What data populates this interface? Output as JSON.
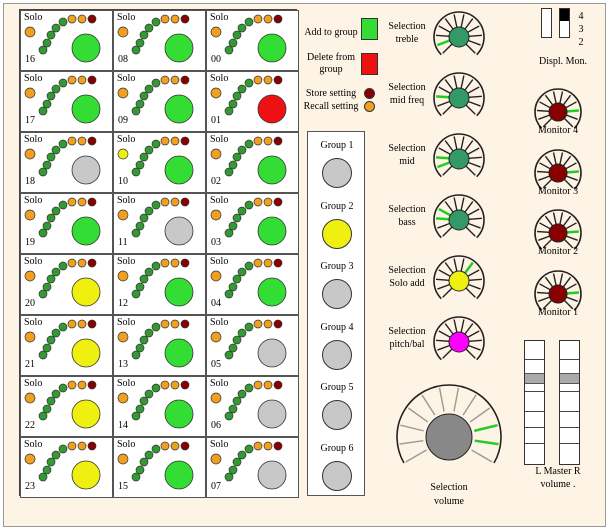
{
  "cells": [
    {
      "num": "16",
      "big": "#33dd33"
    },
    {
      "num": "08",
      "big": "#33dd33"
    },
    {
      "num": "00",
      "big": "#33dd33"
    },
    {
      "num": "17",
      "big": "#33dd33"
    },
    {
      "num": "09",
      "big": "#33dd33"
    },
    {
      "num": "01",
      "big": "#ee1111"
    },
    {
      "num": "18",
      "big": "#c8c8c8"
    },
    {
      "num": "10",
      "big": "#33dd33",
      "smallYellow": true
    },
    {
      "num": "02",
      "big": "#33dd33"
    },
    {
      "num": "19",
      "big": "#33dd33"
    },
    {
      "num": "11",
      "big": "#c8c8c8"
    },
    {
      "num": "03",
      "big": "#33dd33"
    },
    {
      "num": "20",
      "big": "#f0f010"
    },
    {
      "num": "12",
      "big": "#33dd33"
    },
    {
      "num": "04",
      "big": "#33dd33"
    },
    {
      "num": "21",
      "big": "#f0f010"
    },
    {
      "num": "13",
      "big": "#33dd33"
    },
    {
      "num": "05",
      "big": "#c8c8c8"
    },
    {
      "num": "22",
      "big": "#f0f010"
    },
    {
      "num": "14",
      "big": "#33dd33"
    },
    {
      "num": "06",
      "big": "#c8c8c8"
    },
    {
      "num": "23",
      "big": "#f0f010"
    },
    {
      "num": "15",
      "big": "#33dd33"
    },
    {
      "num": "07",
      "big": "#c8c8c8"
    }
  ],
  "solo_label": "Solo",
  "groups": [
    {
      "label": "Group 1",
      "color": "#c8c8c8"
    },
    {
      "label": "Group 2",
      "color": "#f0f010"
    },
    {
      "label": "Group 3",
      "color": "#c8c8c8"
    },
    {
      "label": "Group 4",
      "color": "#c8c8c8"
    },
    {
      "label": "Group 5",
      "color": "#c8c8c8"
    },
    {
      "label": "Group 6",
      "color": "#c8c8c8"
    }
  ],
  "legend": {
    "add": "Add to group",
    "add_color": "#33dd33",
    "del1": "Delete from",
    "del2": "group",
    "del_color": "#ee1111",
    "store": "Store setting",
    "store_color": "#880000",
    "recall": "Recall setting",
    "recall_color": "#f0a020"
  },
  "knobs": [
    {
      "l1": "Selection",
      "l2": "treble",
      "color": "#339966"
    },
    {
      "l1": "Selection",
      "l2": "mid freq",
      "color": "#339966"
    },
    {
      "l1": "Selection",
      "l2": "mid",
      "color": "#339966"
    },
    {
      "l1": "Selection",
      "l2": "bass",
      "color": "#339966"
    },
    {
      "l1": "Selection",
      "l2": "Solo add",
      "color": "#f0f010"
    },
    {
      "l1": "Selection",
      "l2": "pitch/bal",
      "color": "#ff00ff"
    }
  ],
  "volume": {
    "l1": "Selection",
    "l2": "volume"
  },
  "monitors": [
    {
      "label": "Monitor 4"
    },
    {
      "label": "Monitor 3"
    },
    {
      "label": "Monitor 2"
    },
    {
      "label": "Monitor 1"
    }
  ],
  "display": {
    "label": "Displ. Mon.",
    "n4": "4",
    "n3": "3",
    "n2": "2"
  },
  "master": {
    "label": "L Master R",
    "label2": "volume ."
  }
}
